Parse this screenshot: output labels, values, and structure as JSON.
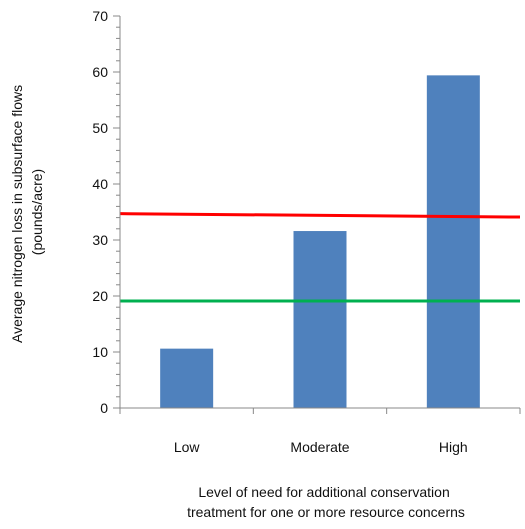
{
  "chart_data": {
    "type": "bar",
    "categories": [
      "Low",
      "Moderate",
      "High"
    ],
    "values": [
      10.6,
      31.6,
      59.4
    ],
    "ylabel": [
      "Average nitrogen loss in subsurface flows",
      "(pounds/acre)"
    ],
    "xlabel": [
      "Level of need for additional conservation",
      "treatment for one or more resource concerns"
    ],
    "ylim": [
      0,
      70
    ],
    "yticks": [
      0,
      10,
      20,
      30,
      40,
      50,
      60,
      70
    ],
    "minor_tick_step": 2,
    "grid": false,
    "legend": "none",
    "bar_color": "#4f81bd",
    "reference_lines": [
      {
        "y_start": 34.7,
        "y_end": 34.1,
        "color": "#ff0000"
      },
      {
        "y_start": 19.1,
        "y_end": 19.1,
        "color": "#00b050"
      }
    ]
  }
}
